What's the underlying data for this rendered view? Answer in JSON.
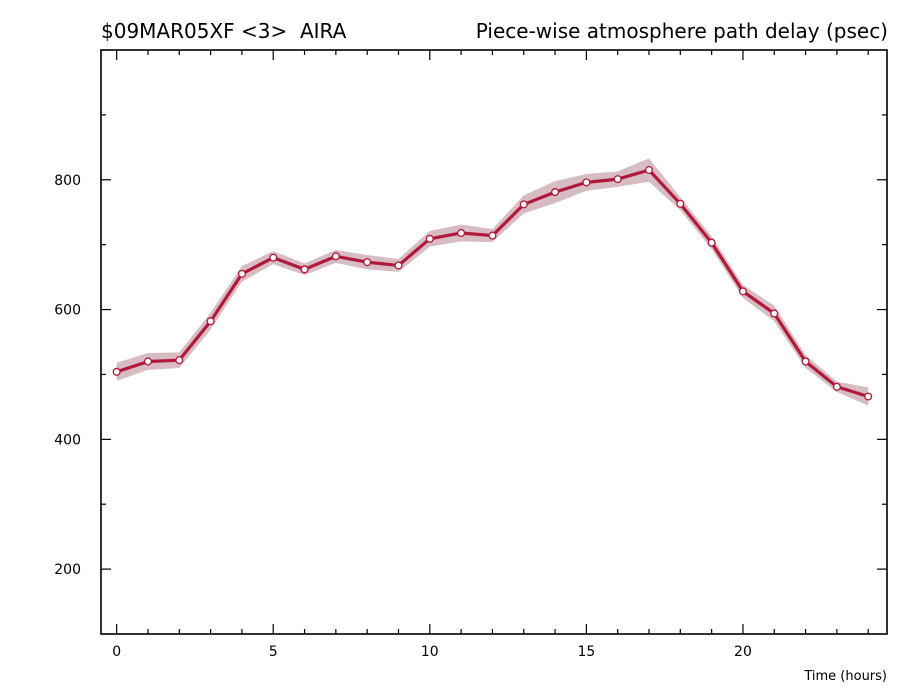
{
  "header": {
    "left_title": "$09MAR05XF <3>  AIRA",
    "right_title": "Piece-wise atmosphere path delay (psec)"
  },
  "colors": {
    "line": "#b0193a",
    "band": "#d7bcc3",
    "marker_fill": "#ffffff",
    "axis": "#000000"
  },
  "chart_data": {
    "type": "line",
    "title": "Piece-wise atmosphere path delay (psec)",
    "xlabel": "Time (hours)",
    "ylabel": "",
    "xlim": [
      -0.5,
      24.6
    ],
    "ylim": [
      100,
      1000
    ],
    "x_ticks": [
      0,
      5,
      10,
      15,
      20
    ],
    "y_ticks": [
      200,
      400,
      600,
      800
    ],
    "grid": false,
    "series": [
      {
        "x": [
          0,
          1,
          2,
          3,
          4,
          5,
          6,
          7,
          8,
          9,
          10,
          11,
          12,
          13,
          14,
          15,
          16,
          17,
          18,
          19,
          20,
          21,
          22,
          23,
          24
        ],
        "values": [
          504,
          520,
          522,
          582,
          655,
          680,
          662,
          682,
          673,
          668,
          709,
          718,
          714,
          762,
          781,
          796,
          801,
          815,
          763,
          703,
          628,
          594,
          520,
          481,
          466
        ],
        "error": [
          14,
          13,
          12,
          13,
          12,
          10,
          9,
          10,
          11,
          10,
          12,
          13,
          10,
          14,
          17,
          13,
          12,
          18,
          10,
          10,
          10,
          12,
          10,
          8,
          14
        ]
      }
    ]
  }
}
